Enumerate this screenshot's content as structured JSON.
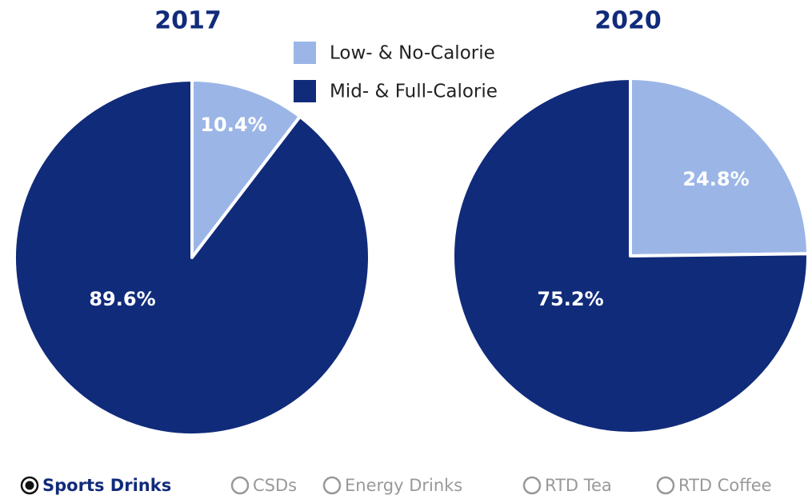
{
  "chart_data": [
    {
      "type": "pie",
      "title": "2017",
      "values": [
        10.4,
        89.6
      ],
      "value_labels": [
        "10.4%",
        "89.6%"
      ]
    },
    {
      "type": "pie",
      "title": "2020",
      "values": [
        24.8,
        75.2
      ],
      "value_labels": [
        "24.8%",
        "75.2%"
      ]
    }
  ],
  "legend": {
    "labels": [
      "Low- & No-Calorie",
      "Mid- & Full-Calorie"
    ],
    "colors": [
      "#9bb6e6",
      "#112b7b"
    ]
  },
  "controls": {
    "options": [
      "Sports Drinks",
      "CSDs",
      "Energy Drinks",
      "RTD Tea",
      "RTD Coffee"
    ],
    "selected": 0
  }
}
